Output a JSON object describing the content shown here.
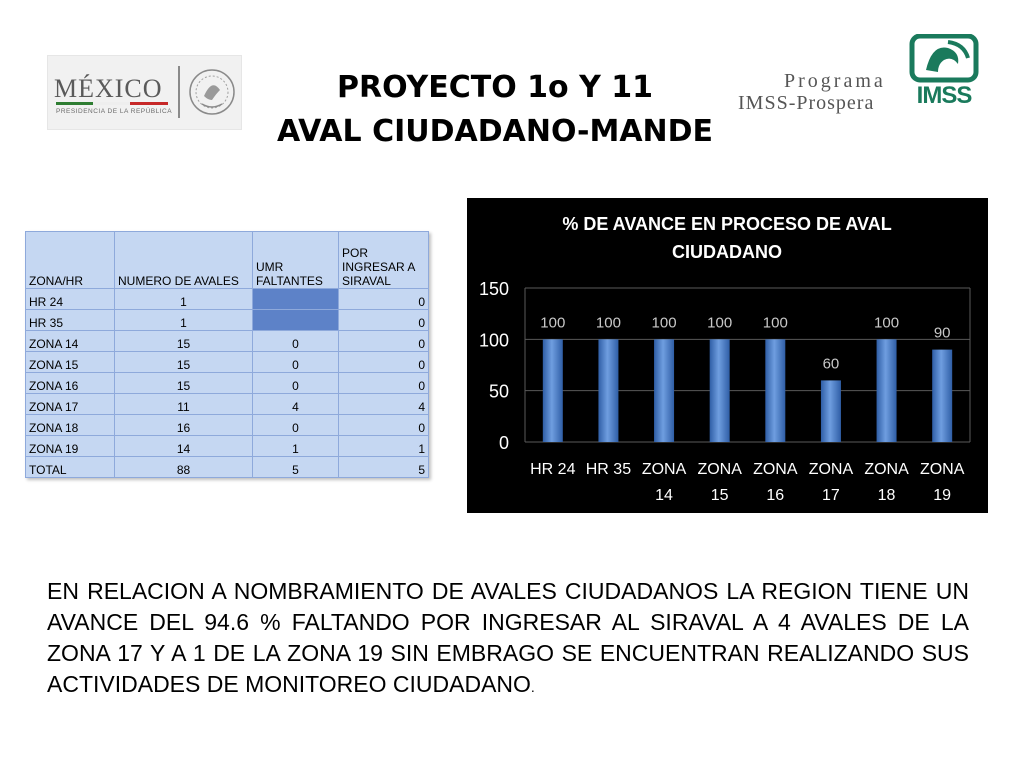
{
  "header": {
    "title_line1": "PROYECTO 1o  Y 11",
    "title_line2": "AVAL CIUDADANO-MANDE",
    "logo_left": {
      "word": "MÉXICO",
      "subtitle": "PRESIDENCIA DE LA REPÚBLICA"
    },
    "logo_programa": {
      "line1": "Programa",
      "line2": "IMSS-Prospera"
    },
    "logo_imss": "IMSS"
  },
  "table": {
    "headers": [
      "ZONA/HR",
      "NUMERO DE AVALES",
      " UMR FALTANTES",
      "POR INGRESAR A SIRAVAL"
    ],
    "rows": [
      {
        "zona": "HR 24",
        "avales": "1",
        "umr": "",
        "por_ingresar": "0",
        "umr_blank": true
      },
      {
        "zona": "HR 35",
        "avales": "1",
        "umr": "",
        "por_ingresar": "0",
        "umr_blank": true
      },
      {
        "zona": "ZONA 14",
        "avales": "15",
        "umr": "0",
        "por_ingresar": "0"
      },
      {
        "zona": "ZONA 15",
        "avales": "15",
        "umr": "0",
        "por_ingresar": "0"
      },
      {
        "zona": "ZONA 16",
        "avales": "15",
        "umr": "0",
        "por_ingresar": "0"
      },
      {
        "zona": "ZONA 17",
        "avales": "11",
        "umr": "4",
        "por_ingresar": "4"
      },
      {
        "zona": "ZONA 18",
        "avales": "16",
        "umr": "0",
        "por_ingresar": "0"
      },
      {
        "zona": "ZONA 19",
        "avales": "14",
        "umr": "1",
        "por_ingresar": "1"
      },
      {
        "zona": "TOTAL",
        "avales": "88",
        "umr": "5",
        "por_ingresar": "5"
      }
    ]
  },
  "chart_data": {
    "type": "bar",
    "title": "% DE AVANCE EN PROCESO DE AVAL CIUDADANO",
    "title_lines": [
      "% DE AVANCE EN PROCESO DE AVAL",
      "CIUDADANO"
    ],
    "categories": [
      [
        "HR 24"
      ],
      [
        "HR 35"
      ],
      [
        "ZONA",
        "14"
      ],
      [
        "ZONA",
        "15"
      ],
      [
        "ZONA",
        "16"
      ],
      [
        "ZONA",
        "17"
      ],
      [
        "ZONA",
        "18"
      ],
      [
        "ZONA",
        "19"
      ]
    ],
    "values": [
      100,
      100,
      100,
      100,
      100,
      60,
      100,
      90
    ],
    "ylim": [
      0,
      150
    ],
    "yticks": [
      0,
      50,
      100,
      150
    ],
    "grid": true,
    "legend": "none",
    "colors": {
      "background": "#000000",
      "bar": "#4a7cc7",
      "bar_highlight": "#6f9ee0",
      "text": "#ffffff",
      "value_label": "#c9c9c9",
      "grid": "#5a5a5a"
    }
  },
  "summary": {
    "text": "EN RELACION A NOMBRAMIENTO DE AVALES CIUDADANOS LA REGION TIENE UN AVANCE DEL 94.6 % FALTANDO POR INGRESAR AL SIRAVAL A 4 AVALES DE LA ZONA 17 Y A 1 DE LA ZONA 19 SIN EMBRAGO SE ENCUENTRAN REALIZANDO SUS ACTIVIDADES DE MONITOREO CIUDADANO",
    "end_mark": "."
  }
}
